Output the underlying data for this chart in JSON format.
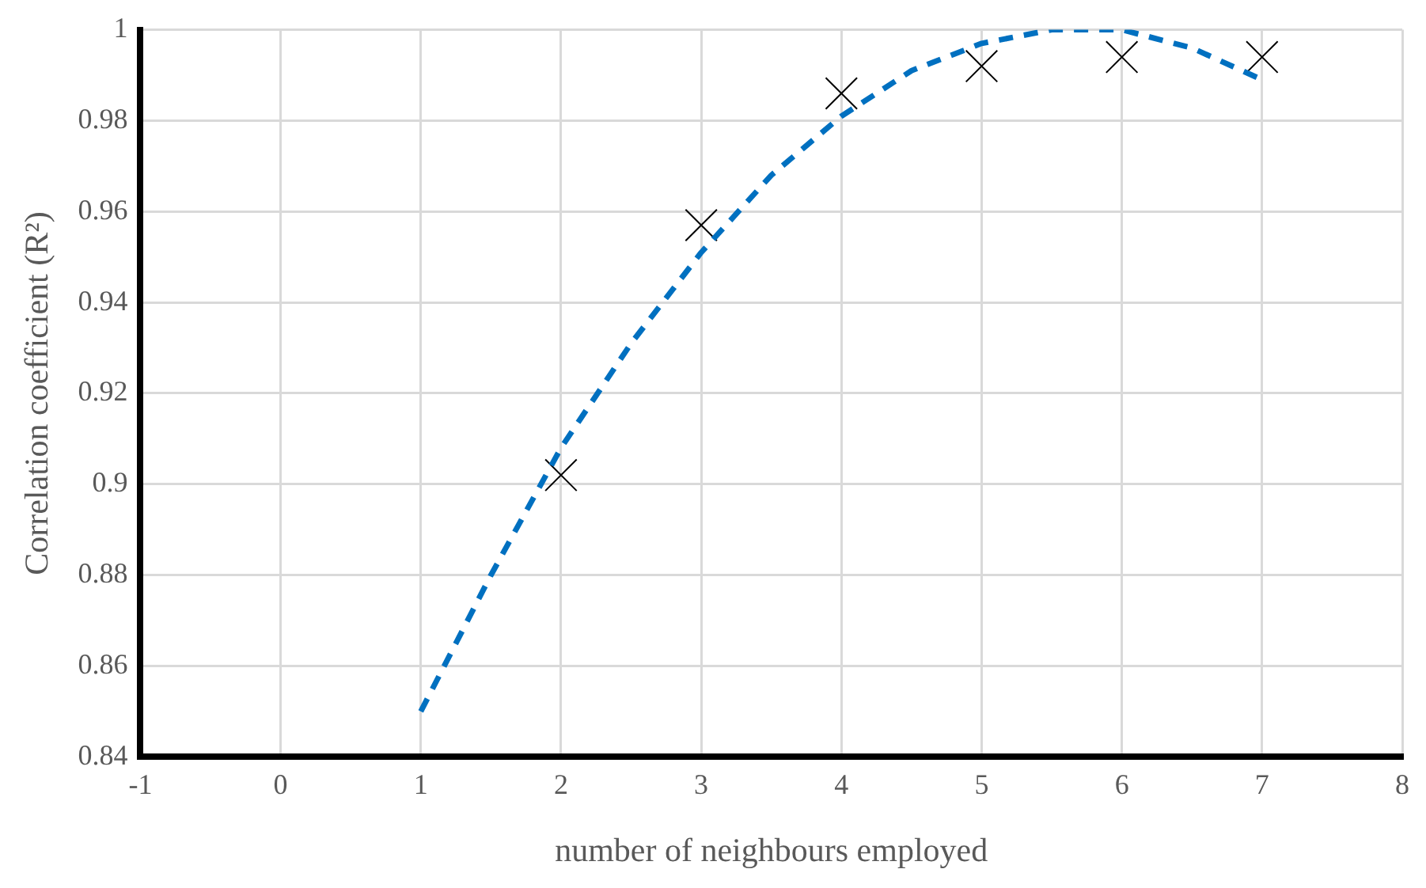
{
  "chart_data": {
    "type": "scatter",
    "xlabel": "number of neighbours employed",
    "ylabel": "Correlation coefficient (R²)",
    "xlim": [
      -1,
      8
    ],
    "xticks": [
      -1,
      0,
      1,
      2,
      3,
      4,
      5,
      6,
      7,
      8
    ],
    "ylim": [
      0.84,
      1
    ],
    "yticks": [
      0.84,
      0.86,
      0.88,
      0.9,
      0.92,
      0.94,
      0.96,
      0.98,
      1
    ],
    "grid": true,
    "legend": false,
    "series": [
      {
        "type": "scatter",
        "color": "#000000",
        "marker": "cross",
        "x": [
          2,
          3,
          4,
          5,
          6,
          7
        ],
        "values": [
          0.902,
          0.957,
          0.986,
          0.992,
          0.994,
          0.994
        ]
      },
      {
        "type": "line",
        "color": "#0070c0",
        "marker": "none",
        "line_style": "dashed",
        "x": [
          1,
          1.5,
          2,
          2.5,
          3,
          3.5,
          4,
          4.5,
          5,
          5.5,
          6,
          6.5,
          7
        ],
        "values": [
          0.85,
          0.88,
          0.908,
          0.931,
          0.951,
          0.968,
          0.981,
          0.991,
          0.997,
          1,
          1,
          0.996,
          0.989
        ]
      }
    ]
  }
}
